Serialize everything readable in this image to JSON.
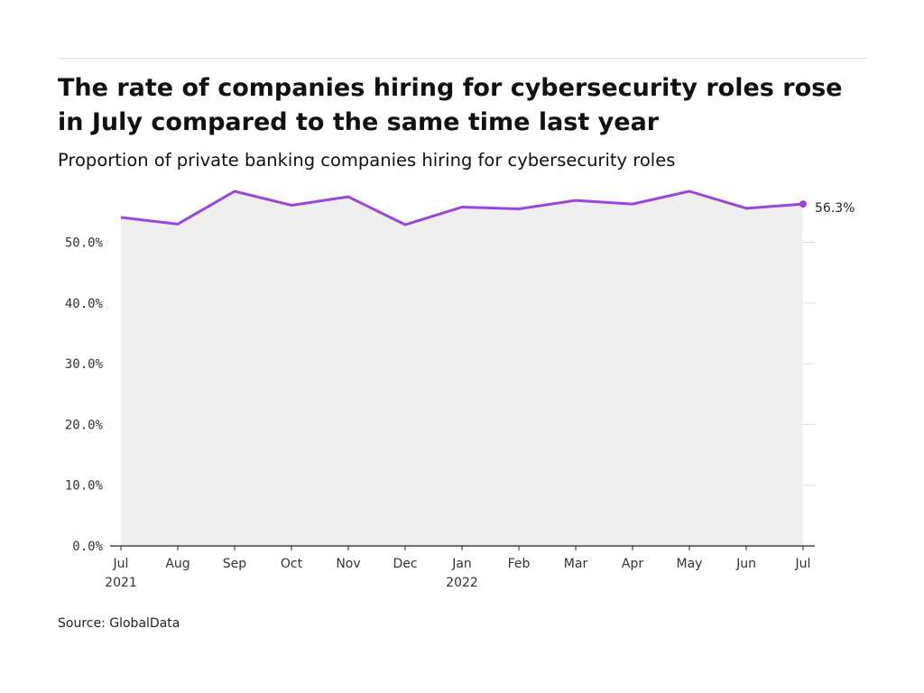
{
  "chart_data": {
    "type": "area",
    "title": "The rate of companies hiring for cybersecurity roles rose in July compared to the same time last year",
    "subtitle": "Proportion of private banking companies hiring for cybersecurity roles",
    "source": "Source: GlobalData",
    "xlabel": "",
    "ylabel": "",
    "categories": [
      "Jul\n2021",
      "Aug",
      "Sep",
      "Oct",
      "Nov",
      "Dec",
      "Jan\n2022",
      "Feb",
      "Mar",
      "Apr",
      "May",
      "Jun",
      "Jul"
    ],
    "series": [
      {
        "values": [
          54.1,
          53.0,
          58.4,
          56.1,
          57.5,
          52.9,
          55.8,
          55.5,
          56.9,
          56.3,
          58.4,
          55.6,
          56.3
        ]
      }
    ],
    "ylim": [
      0,
      58.4
    ],
    "yticks": [
      0,
      10,
      20,
      30,
      40,
      50
    ],
    "ytick_labels": [
      "0.0%",
      "10.0%",
      "20.0%",
      "30.0%",
      "40.0%",
      "50.0%"
    ],
    "end_label": "56.3%",
    "grid": true,
    "legend": "none",
    "colors": {
      "line": "#9b44e0",
      "fill": "#efefef",
      "grid": "#dcdcdc",
      "axis": "#222222"
    }
  }
}
